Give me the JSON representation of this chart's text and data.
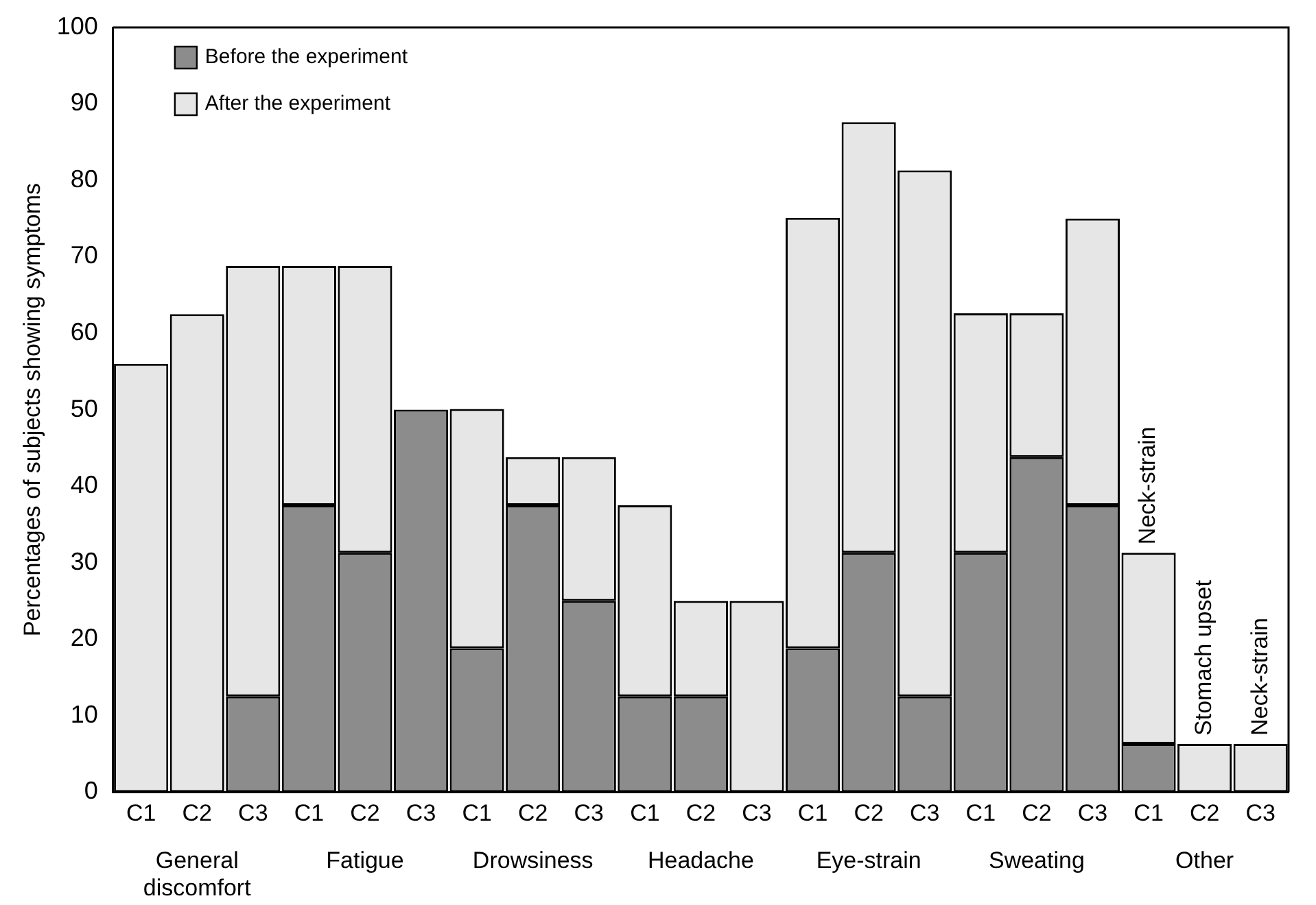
{
  "chart_data": {
    "type": "bar",
    "stacked": true,
    "ylabel": "Percentages of subjects showing symptoms",
    "categories": [
      "C1",
      "C2",
      "C3",
      "C1",
      "C2",
      "C3",
      "C1",
      "C2",
      "C3",
      "C1",
      "C2",
      "C3",
      "C1",
      "C2",
      "C3",
      "C1",
      "C2",
      "C3",
      "C1",
      "C2",
      "C3"
    ],
    "series": [
      {
        "name": "Before the experiment",
        "color": "#8c8c8c",
        "values": [
          0,
          0,
          12.5,
          37.5,
          31.3,
          50,
          18.8,
          37.5,
          25,
          12.5,
          12.5,
          0,
          18.8,
          31.3,
          12.5,
          31.3,
          43.8,
          37.5,
          6.3,
          0,
          0
        ]
      },
      {
        "name": "After the experiment",
        "color": "#e6e6e6",
        "values": [
          56,
          62.5,
          56.3,
          31.3,
          37.5,
          0,
          31.3,
          6.3,
          18.8,
          25,
          12.5,
          25,
          56.3,
          56.3,
          68.8,
          31.3,
          18.8,
          37.5,
          25,
          6.3,
          6.3
        ]
      }
    ],
    "ylim": [
      0,
      100
    ],
    "yticks": [
      0,
      10,
      20,
      30,
      40,
      50,
      60,
      70,
      80,
      90,
      100
    ],
    "grid": false,
    "legend": "top left",
    "annotations": [
      "General\ndiscomfort",
      "Fatigue",
      "Drowsiness",
      "Headache",
      "Eye-strain",
      "Sweating",
      "Other",
      "Neck-strain",
      "Stomach upset",
      "Neck-strain"
    ]
  }
}
